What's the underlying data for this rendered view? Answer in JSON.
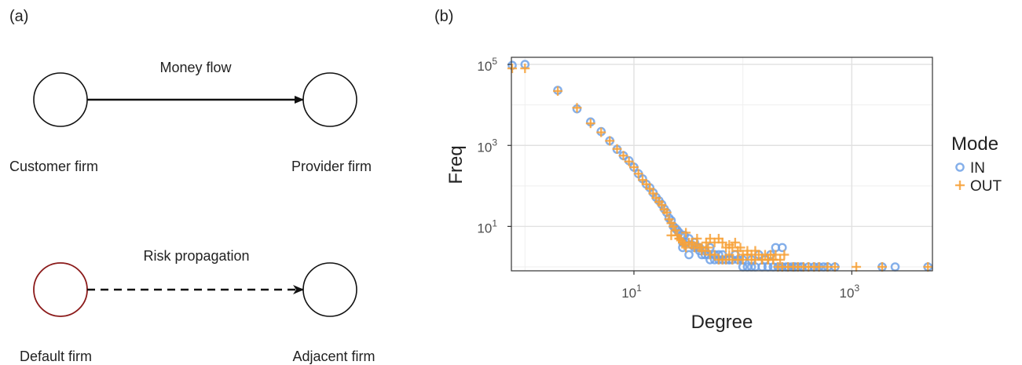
{
  "panel_a": {
    "label": "(a)",
    "money": {
      "edge_label": "Money flow",
      "source": "Customer firm",
      "target": "Provider firm"
    },
    "risk": {
      "edge_label": "Risk propagation",
      "source": "Default firm",
      "target": "Adjacent firm"
    },
    "colors": {
      "node": "#111111",
      "default_node": "#8b1a1a"
    }
  },
  "panel_b": {
    "label": "(b)",
    "chart_data": {
      "type": "scatter",
      "title": "",
      "xlabel": "Degree",
      "ylabel": "Freq",
      "x_scale": "log10",
      "y_scale": "log10",
      "xlim": [
        0.75,
        5500
      ],
      "ylim": [
        0.8,
        150000
      ],
      "x_ticks": [
        {
          "value": 10,
          "base": "10",
          "exp": "1"
        },
        {
          "value": 1000,
          "base": "10",
          "exp": "3"
        }
      ],
      "y_ticks": [
        {
          "value": 10,
          "base": "10",
          "exp": "1"
        },
        {
          "value": 1000,
          "base": "10",
          "exp": "3"
        },
        {
          "value": 100000,
          "base": "10",
          "exp": "5"
        }
      ],
      "grid": true,
      "legend": {
        "title": "Mode",
        "position": "right"
      },
      "series": [
        {
          "name": "IN",
          "marker": "circle",
          "color": "#6fa1e6",
          "x": [
            0.75,
            1,
            2,
            3,
            4,
            5,
            6,
            7,
            8,
            9,
            10,
            11,
            12,
            13,
            14,
            15,
            16,
            17,
            18,
            19,
            20,
            21,
            22,
            23,
            24,
            25,
            26,
            27,
            28,
            29,
            30,
            32,
            34,
            36,
            38,
            40,
            42,
            45,
            48,
            50,
            55,
            60,
            65,
            70,
            75,
            80,
            90,
            100,
            110,
            120,
            130,
            150,
            170,
            190,
            210,
            230,
            250,
            280,
            300,
            320,
            350,
            400,
            450,
            500,
            550,
            600,
            700,
            1900,
            2500,
            5000,
            28,
            32,
            36,
            40,
            45,
            50,
            55,
            60,
            65,
            75,
            85,
            100,
            120,
            140,
            160,
            180,
            200,
            230,
            260,
            300,
            340
          ],
          "y": [
            95000,
            100000,
            23000,
            8000,
            3800,
            2200,
            1300,
            800,
            560,
            420,
            290,
            200,
            150,
            110,
            90,
            68,
            52,
            43,
            35,
            27,
            22,
            16,
            14,
            10,
            9,
            8,
            7,
            6,
            4,
            6,
            4,
            5,
            3.5,
            3,
            3,
            2.5,
            2,
            2,
            2,
            1.5,
            1.5,
            1.5,
            2,
            1.5,
            1.5,
            1.5,
            1.5,
            1,
            1,
            1,
            1,
            1,
            1,
            1,
            1,
            1,
            1,
            1,
            1,
            1,
            1,
            1,
            1,
            1,
            1,
            1,
            1,
            1,
            1,
            1,
            3,
            2,
            4,
            3,
            2.5,
            3,
            2,
            2,
            1.5,
            1.5,
            2,
            1.5,
            1.5,
            2,
            1.5,
            2,
            3,
            3,
            1,
            1,
            1
          ]
        },
        {
          "name": "OUT",
          "marker": "cross",
          "color": "#f7a23a",
          "x": [
            0.75,
            1,
            2,
            3,
            4,
            5,
            6,
            7,
            8,
            9,
            10,
            11,
            12,
            13,
            14,
            15,
            16,
            17,
            18,
            19,
            20,
            21,
            22,
            23,
            24,
            25,
            26,
            27,
            28,
            29,
            30,
            32,
            34,
            36,
            38,
            40,
            42,
            45,
            48,
            50,
            55,
            60,
            65,
            70,
            75,
            80,
            90,
            100,
            110,
            120,
            130,
            150,
            170,
            190,
            210,
            230,
            260,
            290,
            320,
            360,
            400,
            450,
            500,
            600,
            700,
            1100,
            1900,
            5000,
            22,
            26,
            30,
            34,
            38,
            42,
            46,
            50,
            55,
            60,
            65,
            70,
            75,
            80,
            85,
            90,
            95,
            100,
            110,
            120,
            130,
            140,
            150,
            160,
            170,
            180,
            190,
            200,
            220,
            240
          ],
          "y": [
            80000,
            80000,
            22000,
            8500,
            3500,
            2100,
            1300,
            820,
            560,
            400,
            290,
            200,
            140,
            110,
            85,
            65,
            50,
            40,
            34,
            26,
            22,
            15,
            12,
            10,
            8,
            6,
            5,
            4.5,
            4,
            3.5,
            3,
            4,
            3.5,
            3,
            3.5,
            3,
            2.5,
            2.5,
            3,
            2,
            2,
            1.5,
            1.5,
            1.5,
            2,
            1.5,
            1.5,
            1.5,
            2,
            1.5,
            1.5,
            1.5,
            1.5,
            1.5,
            1,
            1,
            1,
            1,
            1,
            1,
            1,
            1,
            1,
            1,
            1,
            1,
            1,
            1,
            6,
            5,
            7,
            4,
            5,
            3,
            4,
            5,
            4,
            5,
            4,
            3,
            3.5,
            3,
            4,
            2.5,
            3,
            2,
            2.5,
            2,
            2.5,
            2,
            1.5,
            2,
            1.5,
            2,
            1.5,
            2,
            1.5,
            2
          ]
        }
      ]
    }
  }
}
